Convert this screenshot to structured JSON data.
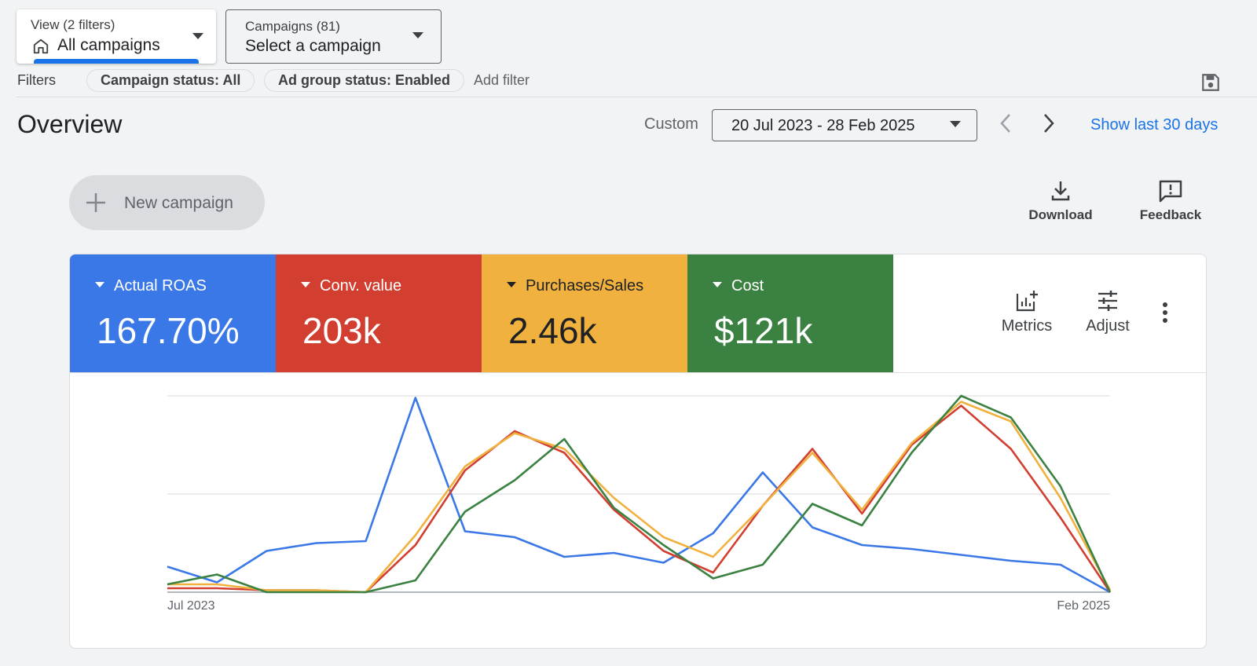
{
  "view": {
    "label": "View (2 filters)",
    "value": "All campaigns"
  },
  "campaigns": {
    "label": "Campaigns (81)",
    "value": "Select a campaign"
  },
  "filters": {
    "label": "Filters",
    "chips": [
      "Campaign status: All",
      "Ad group status: Enabled"
    ],
    "add": "Add filter"
  },
  "overview": {
    "title": "Overview",
    "date_mode": "Custom",
    "date_range": "20 Jul 2023 - 28 Feb 2025",
    "show_last": "Show last 30 days"
  },
  "actions": {
    "new_campaign": "New campaign",
    "download": "Download",
    "feedback": "Feedback",
    "metrics": "Metrics",
    "adjust": "Adjust"
  },
  "scorecards": [
    {
      "label": "Actual ROAS",
      "value": "167.70%",
      "color": "#3b78e7"
    },
    {
      "label": "Conv. value",
      "value": "203k",
      "color": "#d23f31"
    },
    {
      "label": "Purchases/Sales",
      "value": "2.46k",
      "color": "#f0b13e"
    },
    {
      "label": "Cost",
      "value": "$121k",
      "color": "#3b8142"
    }
  ],
  "chart_data": {
    "type": "line",
    "x_tick_labels": [
      "Jul 2023",
      "Feb 2025"
    ],
    "grid": true,
    "y_scale": "relative (0-100, no tick labels shown)",
    "series": [
      {
        "name": "Actual ROAS",
        "color": "#3b78e7",
        "values": [
          13,
          5,
          21,
          25,
          26,
          99,
          31,
          28,
          18,
          20,
          15,
          30,
          61,
          33,
          24,
          22,
          19,
          16,
          14,
          0
        ]
      },
      {
        "name": "Conv. value",
        "color": "#d23f31",
        "values": [
          2,
          2,
          1,
          1,
          0,
          24,
          62,
          82,
          71,
          42,
          21,
          10,
          44,
          73,
          40,
          75,
          95,
          73,
          38,
          0
        ]
      },
      {
        "name": "Purchases/Sales",
        "color": "#f0b13e",
        "values": [
          4,
          4,
          1,
          1,
          0,
          29,
          64,
          81,
          73,
          48,
          28,
          18,
          44,
          71,
          42,
          76,
          97,
          87,
          48,
          1
        ]
      },
      {
        "name": "Cost",
        "color": "#3b8142",
        "values": [
          4,
          9,
          0,
          0,
          0,
          6,
          41,
          57,
          78,
          43,
          24,
          7,
          14,
          45,
          34,
          71,
          100,
          89,
          54,
          0
        ]
      }
    ]
  }
}
